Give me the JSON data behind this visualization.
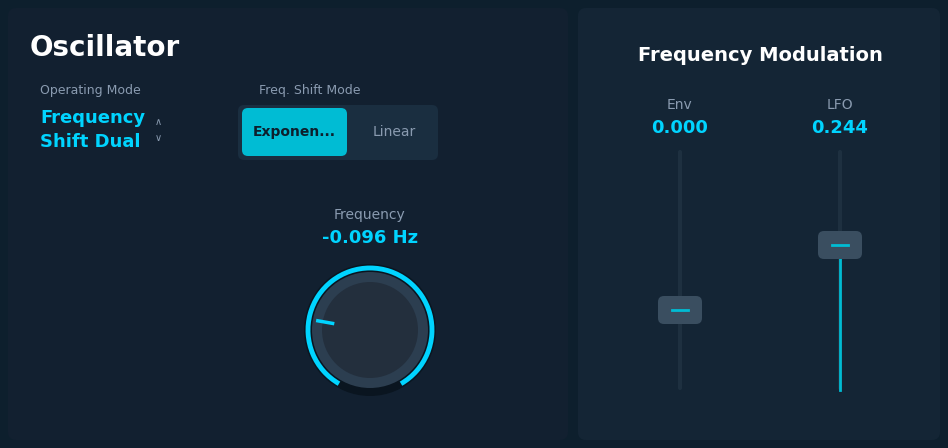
{
  "bg_color": "#0d1f2d",
  "panel_bg": "#122030",
  "right_panel_bg": "#142535",
  "title": "Oscillator",
  "title_color": "#ffffff",
  "title_fontsize": 20,
  "operating_mode_label": "Operating Mode",
  "operating_mode_value": "Frequency\nShift Dual",
  "operating_mode_label_color": "#8a9bb0",
  "operating_mode_value_color": "#00d4ff",
  "freq_shift_mode_label": "Freq. Shift Mode",
  "freq_shift_mode_label_color": "#8a9bb0",
  "btn_exponen_text": "Exponen...",
  "btn_exponen_bg": "#00bcd4",
  "btn_exponen_fg": "#0d1f2d",
  "btn_linear_text": "Linear",
  "btn_linear_bg": "#1e3448",
  "btn_linear_fg": "#8a9bb0",
  "frequency_label": "Frequency",
  "frequency_value": "-0.096 Hz",
  "frequency_label_color": "#8a9bb0",
  "frequency_value_color": "#00d4ff",
  "knob_bg": "#2a3a4a",
  "knob_ring_color": "#00d4ff",
  "knob_indicator_color": "#00d4ff",
  "freq_mod_title": "Frequency Modulation",
  "freq_mod_title_color": "#ffffff",
  "env_label": "Env",
  "env_value": "0.000",
  "lfo_label": "LFO",
  "lfo_value": "0.244",
  "slider_label_color": "#8a9bb0",
  "slider_value_color": "#00d4ff",
  "slider_track_color": "#2a3a4a",
  "slider_handle_color": "#3a4e60",
  "slider_handle_indicator": "#00bcd4"
}
